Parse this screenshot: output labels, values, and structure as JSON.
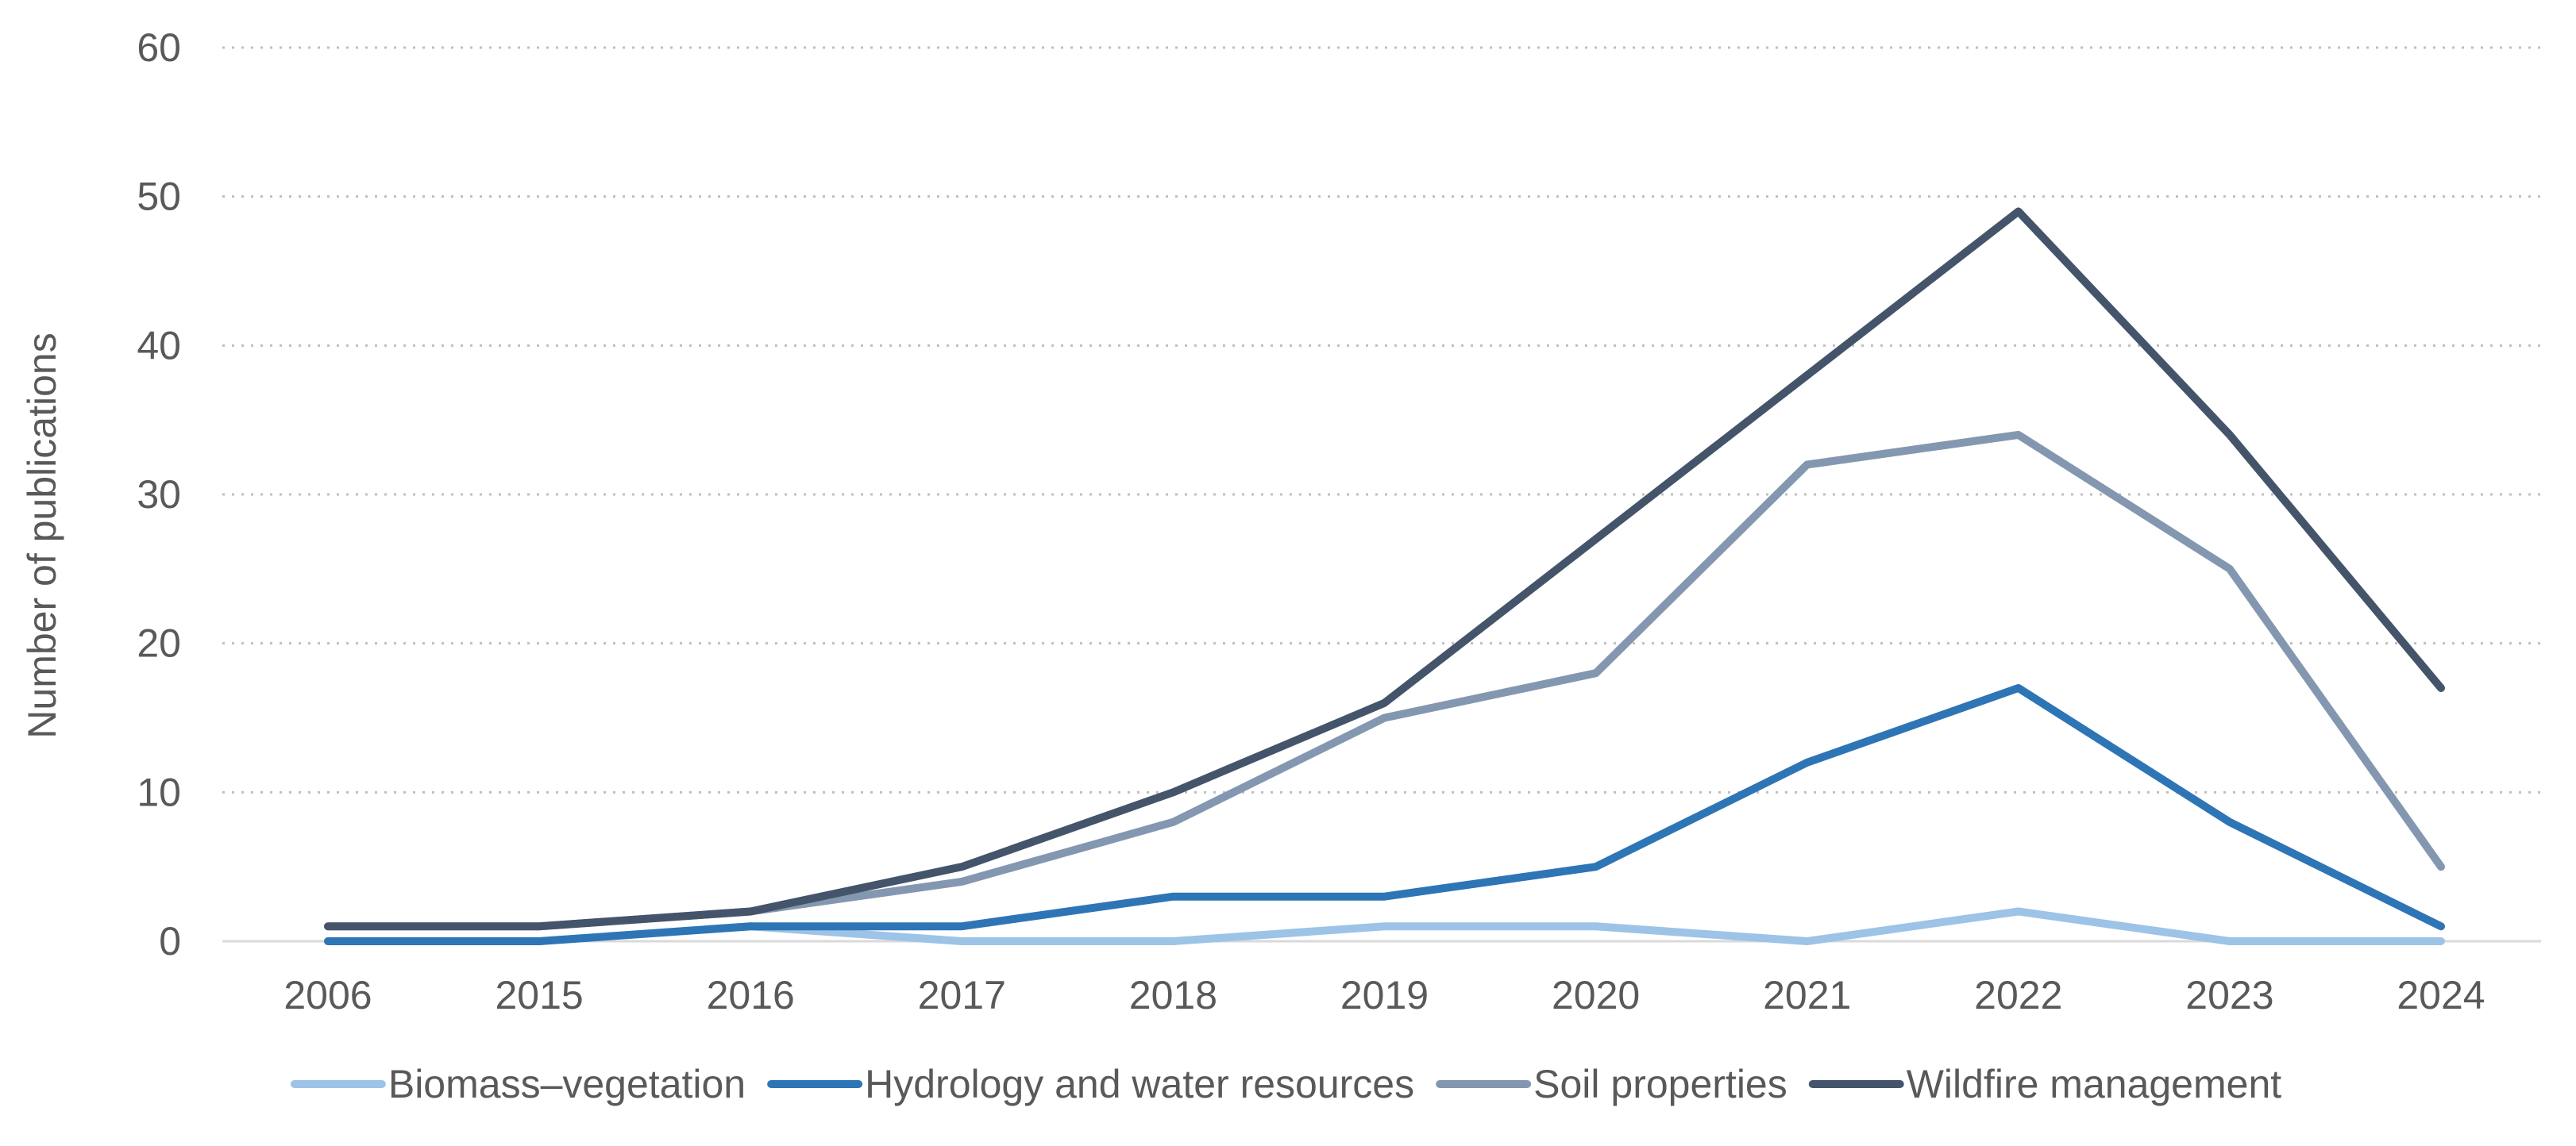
{
  "chart_data": {
    "type": "line",
    "title": "",
    "xlabel": "",
    "ylabel": "Number of publications",
    "categories": [
      "2006",
      "2015",
      "2016",
      "2017",
      "2018",
      "2019",
      "2020",
      "2021",
      "2022",
      "2023",
      "2024"
    ],
    "ylim": [
      0,
      60
    ],
    "yticks": [
      0,
      10,
      20,
      30,
      40,
      50,
      60
    ],
    "grid": true,
    "legend_position": "bottom",
    "series": [
      {
        "name": "Biomass–vegetation",
        "color": "#9dc3e6",
        "values": [
          0,
          0,
          1,
          0,
          0,
          1,
          1,
          0,
          2,
          0,
          0
        ]
      },
      {
        "name": "Hydrology and water resources",
        "color": "#2e75b6",
        "values": [
          0,
          0,
          1,
          1,
          3,
          3,
          5,
          12,
          17,
          8,
          1
        ]
      },
      {
        "name": "Soil properties",
        "color": "#8497b0",
        "values": [
          1,
          1,
          2,
          4,
          8,
          15,
          18,
          32,
          34,
          25,
          5
        ]
      },
      {
        "name": "Wildfire management",
        "color": "#44546a",
        "values": [
          1,
          1,
          2,
          5,
          10,
          16,
          27,
          38,
          49,
          34,
          17
        ]
      }
    ]
  }
}
